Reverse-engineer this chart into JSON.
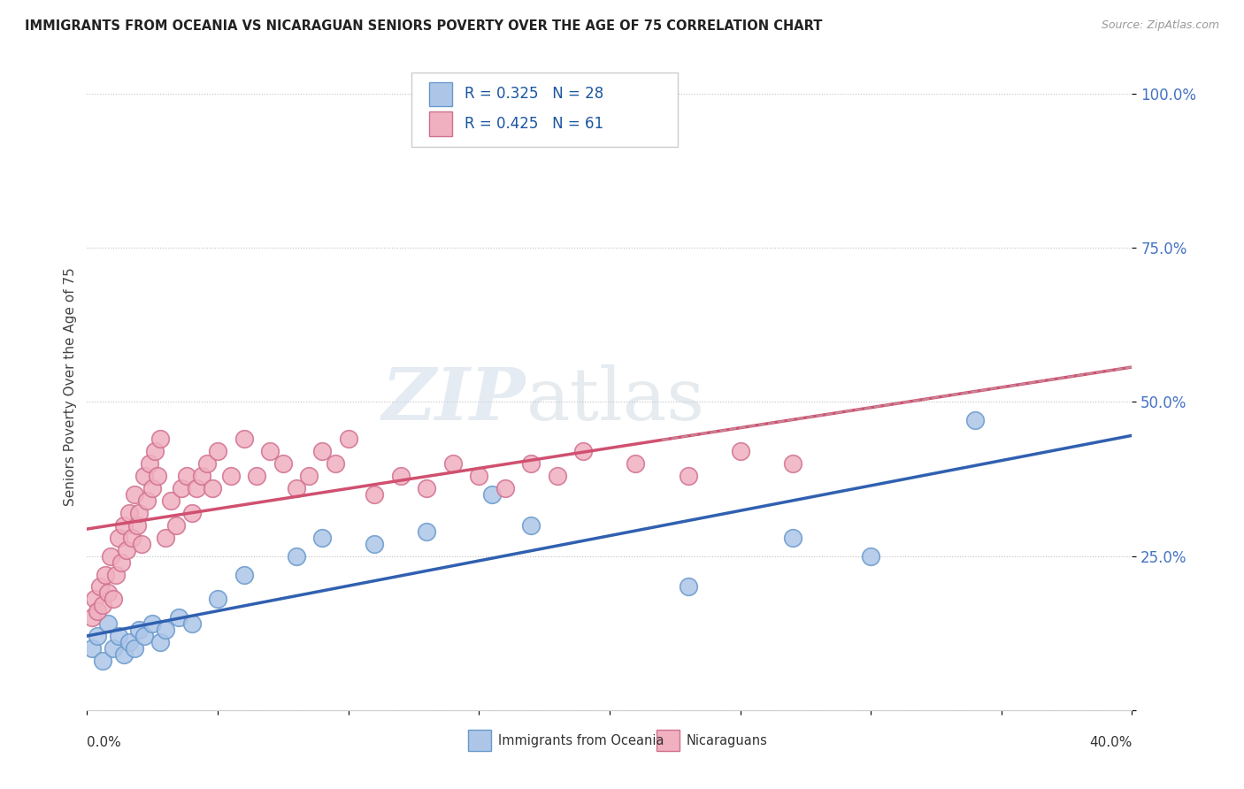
{
  "title": "IMMIGRANTS FROM OCEANIA VS NICARAGUAN SENIORS POVERTY OVER THE AGE OF 75 CORRELATION CHART",
  "source": "Source: ZipAtlas.com",
  "ylabel": "Seniors Poverty Over the Age of 75",
  "xlim": [
    0.0,
    0.4
  ],
  "ylim": [
    0.0,
    1.05
  ],
  "blue_R": 0.325,
  "blue_N": 28,
  "pink_R": 0.425,
  "pink_N": 61,
  "blue_color": "#adc6e8",
  "blue_edge": "#6899cc",
  "pink_color": "#f0b0c0",
  "pink_edge": "#d07090",
  "blue_line_color": "#3060b0",
  "pink_line_color": "#d05070",
  "pink_line_dash_color": "#e08090",
  "legend_label_blue": "Immigrants from Oceania",
  "legend_label_pink": "Nicaraguans",
  "watermark_zip": "ZIP",
  "watermark_atlas": "atlas",
  "blue_scatter_x": [
    0.002,
    0.004,
    0.006,
    0.008,
    0.01,
    0.012,
    0.014,
    0.016,
    0.018,
    0.02,
    0.022,
    0.025,
    0.028,
    0.03,
    0.035,
    0.04,
    0.05,
    0.06,
    0.08,
    0.09,
    0.11,
    0.13,
    0.155,
    0.17,
    0.23,
    0.27,
    0.3,
    0.34
  ],
  "blue_scatter_y": [
    0.1,
    0.12,
    0.08,
    0.14,
    0.1,
    0.12,
    0.09,
    0.11,
    0.1,
    0.13,
    0.12,
    0.14,
    0.11,
    0.13,
    0.15,
    0.14,
    0.18,
    0.22,
    0.25,
    0.28,
    0.27,
    0.29,
    0.35,
    0.3,
    0.2,
    0.28,
    0.25,
    0.47
  ],
  "pink_scatter_x": [
    0.002,
    0.003,
    0.004,
    0.005,
    0.006,
    0.007,
    0.008,
    0.009,
    0.01,
    0.011,
    0.012,
    0.013,
    0.014,
    0.015,
    0.016,
    0.017,
    0.018,
    0.019,
    0.02,
    0.021,
    0.022,
    0.023,
    0.024,
    0.025,
    0.026,
    0.027,
    0.028,
    0.03,
    0.032,
    0.034,
    0.036,
    0.038,
    0.04,
    0.042,
    0.044,
    0.046,
    0.048,
    0.05,
    0.055,
    0.06,
    0.065,
    0.07,
    0.075,
    0.08,
    0.085,
    0.09,
    0.095,
    0.1,
    0.11,
    0.12,
    0.13,
    0.14,
    0.15,
    0.16,
    0.17,
    0.18,
    0.19,
    0.21,
    0.23,
    0.25,
    0.27
  ],
  "pink_scatter_y": [
    0.15,
    0.18,
    0.16,
    0.2,
    0.17,
    0.22,
    0.19,
    0.25,
    0.18,
    0.22,
    0.28,
    0.24,
    0.3,
    0.26,
    0.32,
    0.28,
    0.35,
    0.3,
    0.32,
    0.27,
    0.38,
    0.34,
    0.4,
    0.36,
    0.42,
    0.38,
    0.44,
    0.28,
    0.34,
    0.3,
    0.36,
    0.38,
    0.32,
    0.36,
    0.38,
    0.4,
    0.36,
    0.42,
    0.38,
    0.44,
    0.38,
    0.42,
    0.4,
    0.36,
    0.38,
    0.42,
    0.4,
    0.44,
    0.35,
    0.38,
    0.36,
    0.4,
    0.38,
    0.36,
    0.4,
    0.38,
    0.42,
    0.4,
    0.38,
    0.42,
    0.4
  ],
  "yticks": [
    0.0,
    0.25,
    0.5,
    0.75,
    1.0
  ],
  "ytick_labels": [
    "",
    "25.0%",
    "50.0%",
    "75.0%",
    "100.0%"
  ]
}
